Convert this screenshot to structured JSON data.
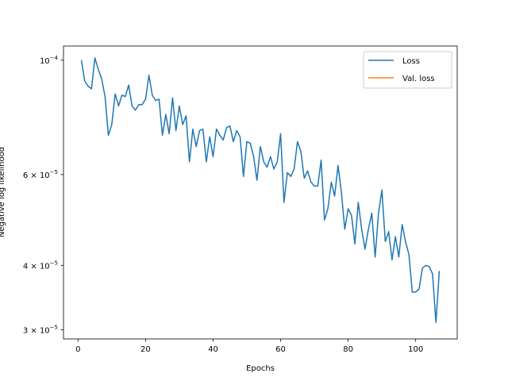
{
  "chart_data": {
    "type": "line",
    "title": "",
    "xlabel": "Epochs",
    "ylabel": "Negative log likelihood",
    "xlim": [
      -4.3,
      112.3
    ],
    "ylim": [
      2.88e-05,
      0.0001065
    ],
    "yscale": "log",
    "grid": false,
    "legend_position": "top-right",
    "xticks": [
      {
        "value": 0,
        "label": "0"
      },
      {
        "value": 20,
        "label": "20"
      },
      {
        "value": 40,
        "label": "40"
      },
      {
        "value": 60,
        "label": "60"
      },
      {
        "value": 80,
        "label": "80"
      },
      {
        "value": 100,
        "label": "100"
      }
    ],
    "yticks": [
      {
        "value": 0.0001,
        "base": "10",
        "exp": "−4"
      },
      {
        "value": 6e-05,
        "base": "6 × 10",
        "exp": "−5"
      },
      {
        "value": 4e-05,
        "base": "4 × 10",
        "exp": "−5"
      },
      {
        "value": 3e-05,
        "base": "3 × 10",
        "exp": "−5"
      }
    ],
    "series": [
      {
        "name": "Loss",
        "color": "#1f77b4",
        "x": [
          1,
          2,
          3,
          4,
          5,
          6,
          7,
          8,
          9,
          10,
          11,
          12,
          13,
          14,
          15,
          16,
          17,
          18,
          19,
          20,
          21,
          22,
          23,
          24,
          25,
          26,
          27,
          28,
          29,
          30,
          31,
          32,
          33,
          34,
          35,
          36,
          37,
          38,
          39,
          40,
          41,
          42,
          43,
          44,
          45,
          46,
          47,
          48,
          49,
          50,
          51,
          52,
          53,
          54,
          55,
          56,
          57,
          58,
          59,
          60,
          61,
          62,
          63,
          64,
          65,
          66,
          67,
          68,
          69,
          70,
          71,
          72,
          73,
          74,
          75,
          76,
          77,
          78,
          79,
          80,
          81,
          82,
          83,
          84,
          85,
          86,
          87,
          88,
          89,
          90,
          91,
          92,
          93,
          94,
          95,
          96,
          97,
          98,
          99,
          100,
          101,
          102,
          103,
          104,
          105,
          106,
          107
        ],
        "y": [
          0.0001,
          9.1e-05,
          8.9e-05,
          8.8e-05,
          0.000101,
          9.6e-05,
          9.2e-05,
          8.5e-05,
          7.15e-05,
          7.5e-05,
          8.6e-05,
          8.15e-05,
          8.55e-05,
          8.5e-05,
          8.95e-05,
          8.15e-05,
          8e-05,
          8.2e-05,
          8.2e-05,
          8.4e-05,
          9.35e-05,
          8.55e-05,
          8.35e-05,
          8.4e-05,
          7.15e-05,
          7.85e-05,
          7.2e-05,
          8.45e-05,
          7.3e-05,
          8.15e-05,
          7.5e-05,
          7.8e-05,
          6.35e-05,
          7.35e-05,
          6.8e-05,
          7.3e-05,
          7.35e-05,
          6.35e-05,
          7.1e-05,
          6.5e-05,
          7.35e-05,
          7.15e-05,
          7e-05,
          7.4e-05,
          7.45e-05,
          6.95e-05,
          7.3e-05,
          7.1e-05,
          5.95e-05,
          6.95e-05,
          6.9e-05,
          6.5e-05,
          5.85e-05,
          6.8e-05,
          6.35e-05,
          6.2e-05,
          6.5e-05,
          6.15e-05,
          6.35e-05,
          7.2e-05,
          5.3e-05,
          6.05e-05,
          5.95e-05,
          6.15e-05,
          6.95e-05,
          6.65e-05,
          5.9e-05,
          6.1e-05,
          5.8e-05,
          5.7e-05,
          5.7e-05,
          6.4e-05,
          4.9e-05,
          5.15e-05,
          5.8e-05,
          5.45e-05,
          6.25e-05,
          5.55e-05,
          4.7e-05,
          5.15e-05,
          5e-05,
          4.4e-05,
          5.3e-05,
          4.7e-05,
          4.3e-05,
          4.7e-05,
          5.05e-05,
          4.15e-05,
          5.05e-05,
          5.6e-05,
          4.45e-05,
          4.65e-05,
          4.1e-05,
          4.55e-05,
          4.15e-05,
          4.8e-05,
          4.45e-05,
          4.2e-05,
          3.55e-05,
          3.55e-05,
          3.6e-05,
          3.95e-05,
          4e-05,
          3.98e-05,
          3.85e-05,
          3.1e-05,
          3.9e-05
        ]
      },
      {
        "name": "Val. loss",
        "color": "#ff7f0e",
        "x": [],
        "y": []
      }
    ]
  }
}
